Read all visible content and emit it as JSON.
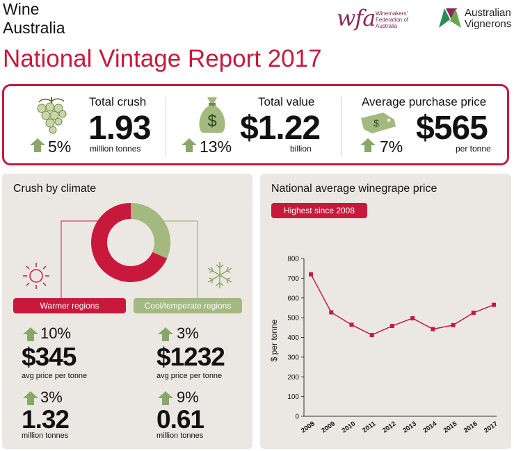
{
  "brand": {
    "line1": "Wine",
    "line2": "Australia"
  },
  "logos": {
    "wfa_mark": "wfa",
    "wfa_line1": "Winemakers'",
    "wfa_line2": "Federation of",
    "wfa_line3": "Australia",
    "av_line1": "Australian",
    "av_line2": "Vignerons"
  },
  "title": "National Vintage Report 2017",
  "stats": [
    {
      "label": "Total crush",
      "value": "1.93",
      "unit": "million tonnes",
      "change": "5%",
      "icon": "grapes-icon"
    },
    {
      "label": "Total value",
      "value": "$1.22",
      "unit": "billion",
      "change": "13%",
      "icon": "money-bag-icon"
    },
    {
      "label": "Average purchase price",
      "value": "$565",
      "unit": "per tonne",
      "change": "7%",
      "icon": "price-tag-icon"
    }
  ],
  "crush_by_climate": {
    "title": "Crush by climate",
    "warmer": {
      "label": "Warmer regions",
      "price_change": "10%",
      "price": "$345",
      "price_unit": "avg price per tonne",
      "volume_change": "3%",
      "volume": "1.32",
      "volume_unit": "million tonnes"
    },
    "cool": {
      "label": "Cool/temperate regions",
      "price_change": "3%",
      "price": "$1232",
      "price_unit": "avg price per tonne",
      "volume_change": "9%",
      "volume": "0.61",
      "volume_unit": "million tonnes"
    }
  },
  "colors": {
    "accent": "#c8193d",
    "green": "#8aa76a",
    "panel": "#ebe8e3"
  },
  "chart_data": [
    {
      "type": "pie",
      "title": "Crush by climate",
      "categories": [
        "Warmer regions",
        "Cool/temperate regions"
      ],
      "values": [
        1.32,
        0.61
      ],
      "colors": [
        "#c8193d",
        "#a3b97f"
      ]
    },
    {
      "type": "line",
      "title": "National average winegrape price",
      "badge": "Highest since 2008",
      "ylabel": "$ per tonne",
      "x": [
        "2008",
        "2009",
        "2010",
        "2011",
        "2012",
        "2013",
        "2014",
        "2015",
        "2016",
        "2017"
      ],
      "values": [
        720,
        527,
        464,
        412,
        458,
        497,
        442,
        462,
        525,
        565
      ],
      "ylim": [
        0,
        800
      ],
      "yticks": [
        "0",
        "100",
        "200",
        "300",
        "400",
        "500",
        "600",
        "700",
        "800"
      ],
      "color": "#c8193d"
    }
  ]
}
